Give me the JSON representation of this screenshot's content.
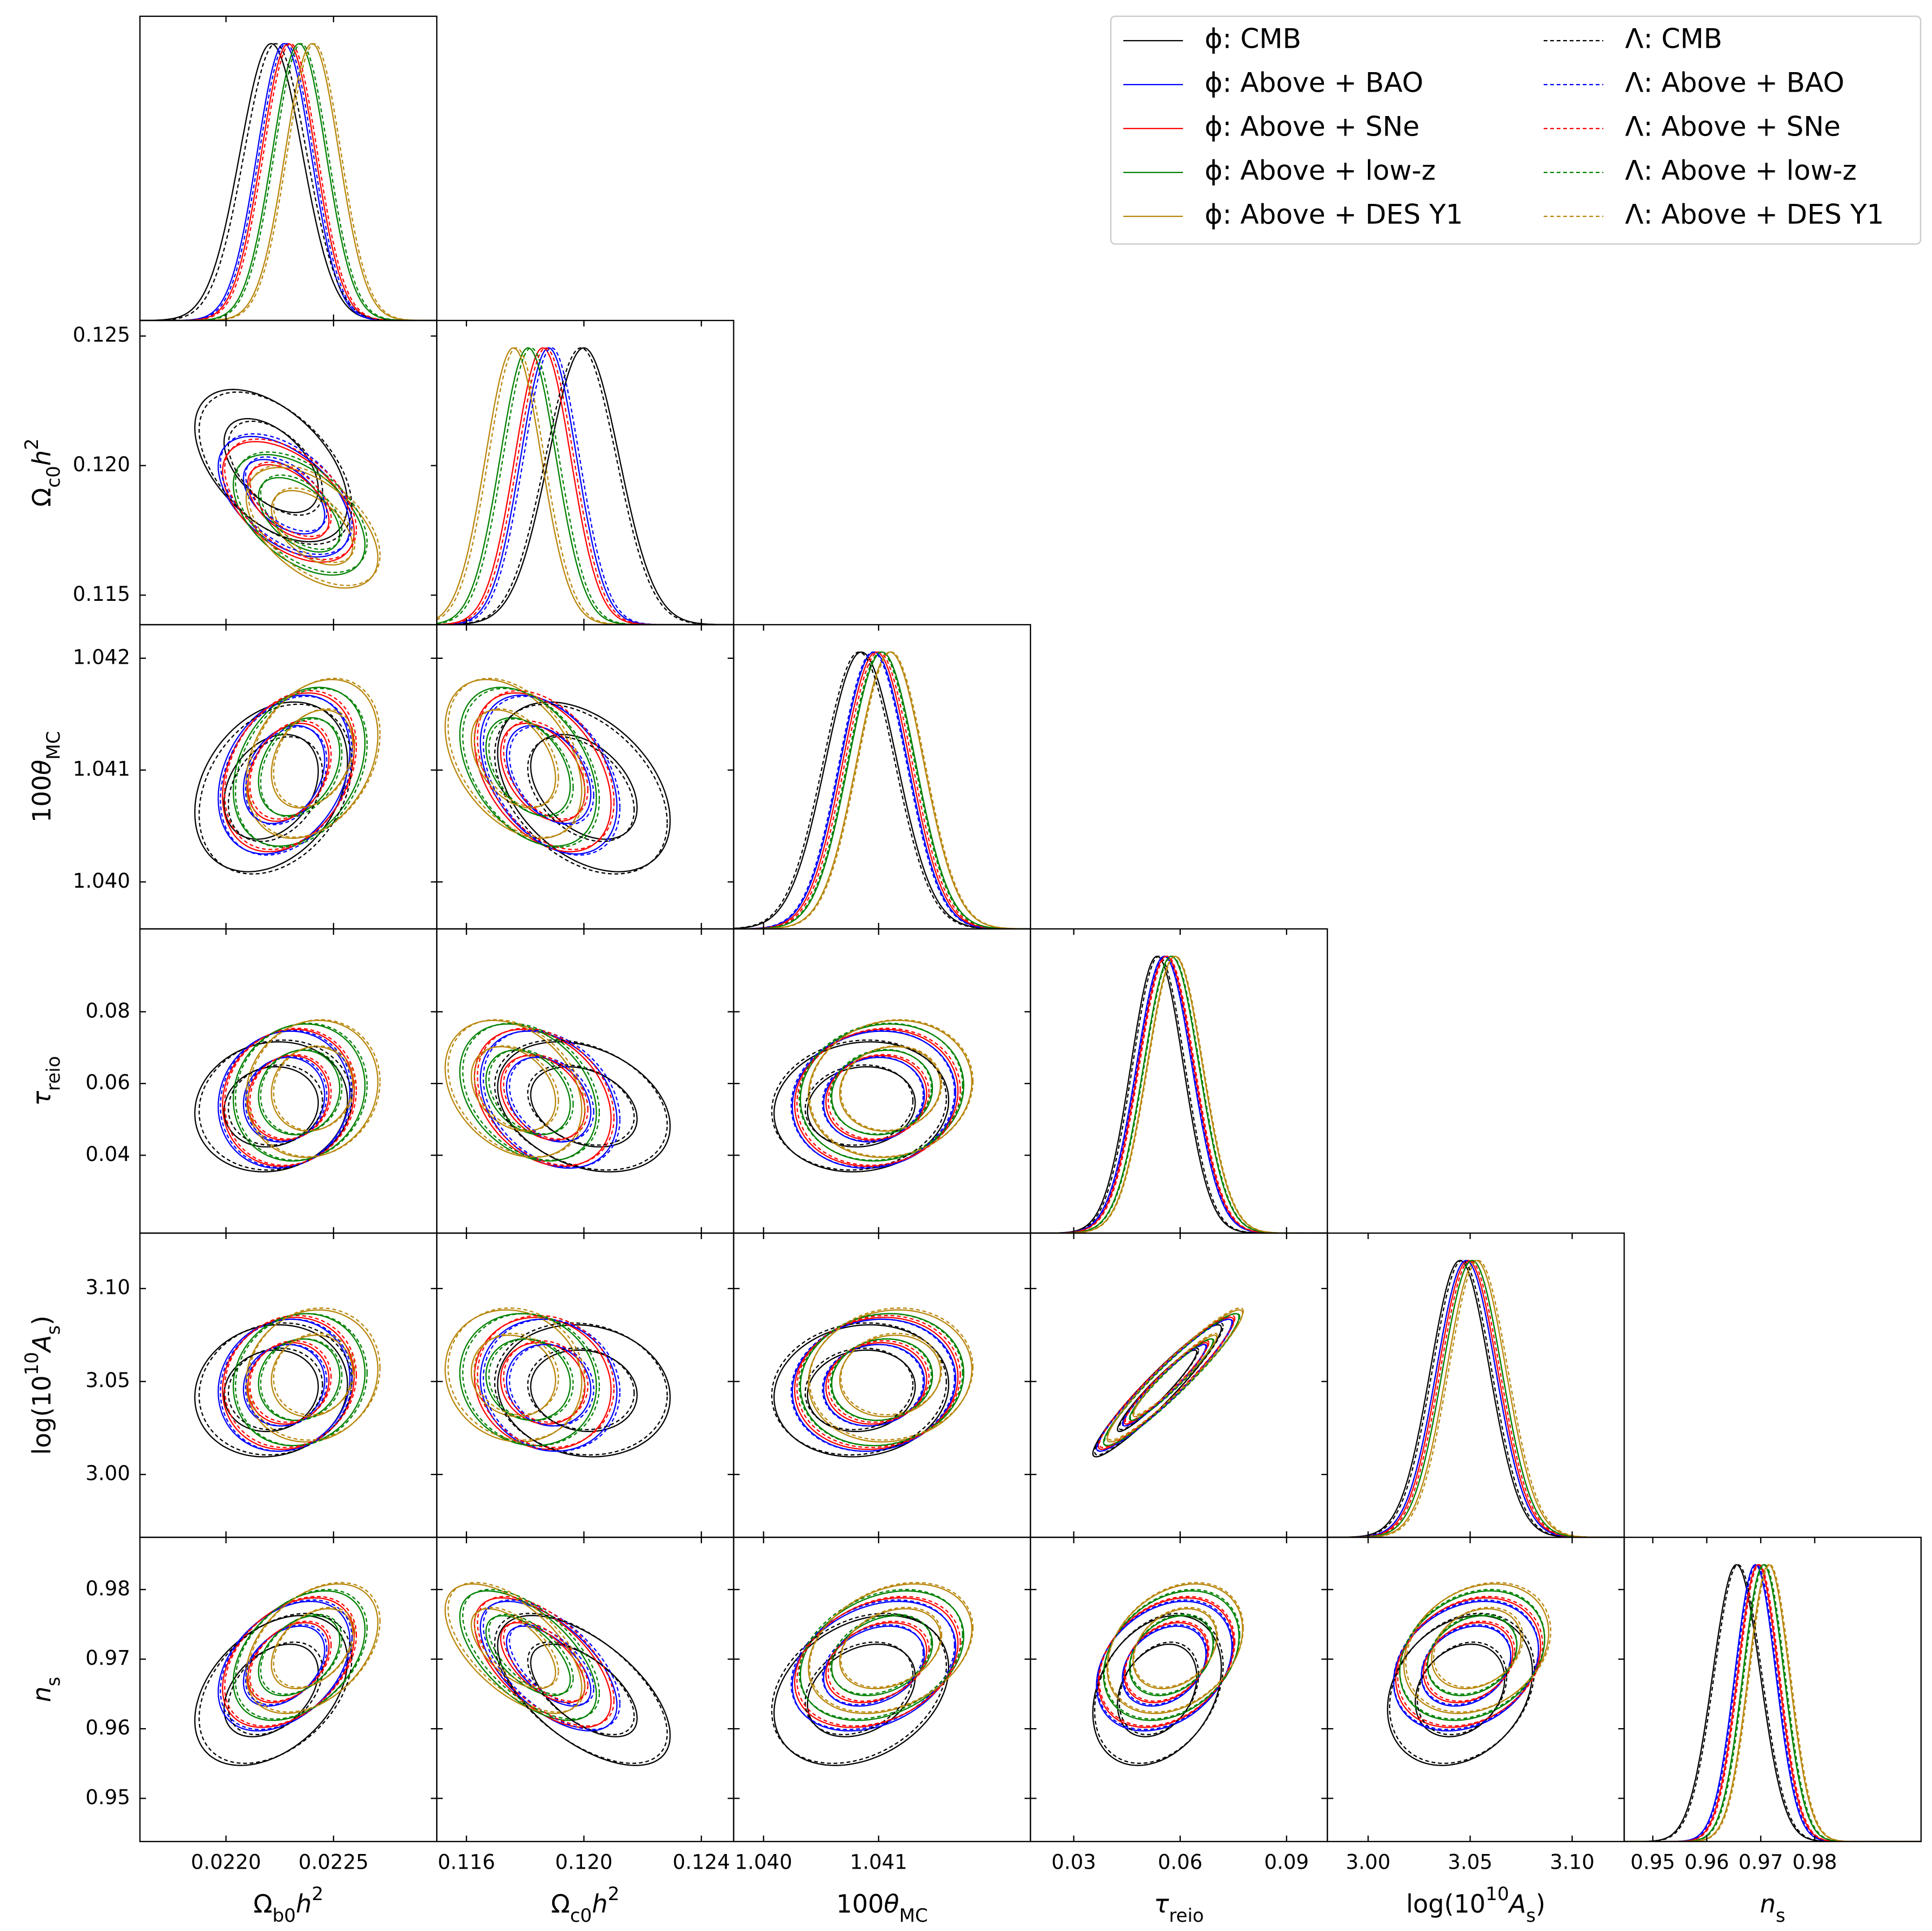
{
  "chart_data": {
    "type": "corner",
    "parameters": [
      {
        "label": [
          {
            "t": "Ω",
            "s": "n"
          },
          {
            "t": "b0",
            "s": "sub"
          },
          {
            "t": "h",
            "s": "i"
          },
          {
            "t": "2",
            "s": "sup"
          }
        ],
        "xlim": [
          0.0216,
          0.02298
        ],
        "xticks": [
          {
            "value": 0.022,
            "label": "0.0220"
          },
          {
            "value": 0.0225,
            "label": "0.0225"
          }
        ]
      },
      {
        "label": [
          {
            "t": "Ω",
            "s": "n"
          },
          {
            "t": "c0",
            "s": "sub"
          },
          {
            "t": "h",
            "s": "i"
          },
          {
            "t": "2",
            "s": "sup"
          }
        ],
        "xlim": [
          0.11499,
          0.1251
        ],
        "xticks": [
          0.116,
          {
            "value": 0.12,
            "label": "0.120"
          },
          0.124
        ],
        "ylim": [
          0.11386,
          0.1256
        ],
        "yticks": [
          0.115,
          {
            "value": 0.12,
            "label": "0.120"
          },
          0.125
        ]
      },
      {
        "label": [
          {
            "t": "100",
            "s": "n"
          },
          {
            "t": "θ",
            "s": "i"
          },
          {
            "t": "MC",
            "s": "sub"
          }
        ],
        "xlim": [
          1.03974,
          1.04232
        ],
        "xticks": [
          {
            "value": 1.04,
            "label": "1.040"
          },
          1.041
        ],
        "ylim": [
          1.03958,
          1.0423
        ],
        "yticks": [
          {
            "value": 1.04,
            "label": "1.040"
          },
          1.041,
          1.042
        ]
      },
      {
        "label": [
          {
            "t": "τ",
            "s": "i"
          },
          {
            "t": "reio",
            "s": "sub"
          }
        ],
        "xlim": [
          0.0178,
          0.1015
        ],
        "xticks": [
          0.03,
          0.06,
          0.09
        ],
        "ylim": [
          0.0183,
          0.1031
        ],
        "yticks": [
          0.04,
          0.06,
          0.08
        ]
      },
      {
        "label": [
          {
            "t": "log(10",
            "s": "n"
          },
          {
            "t": "10",
            "s": "sup"
          },
          {
            "t": "A",
            "s": "i"
          },
          {
            "t": "s",
            "s": "sub"
          },
          {
            "t": ")",
            "s": "n"
          }
        ],
        "xlim": [
          2.98,
          3.1255
        ],
        "xticks": [
          {
            "value": 3,
            "label": "3.00"
          },
          3.05,
          {
            "value": 3.1,
            "label": "3.10"
          }
        ],
        "ylim": [
          2.9662,
          3.1298
        ],
        "yticks": [
          {
            "value": 3,
            "label": "3.00"
          },
          3.05,
          {
            "value": 3.1,
            "label": "3.10"
          }
        ]
      },
      {
        "label": [
          {
            "t": "n",
            "s": "i"
          },
          {
            "t": "s",
            "s": "sub"
          }
        ],
        "xlim": [
          0.9447,
          0.9997
        ],
        "xticks": [
          0.95,
          0.96,
          0.97,
          0.98
        ],
        "ylim": [
          0.9438,
          0.9875
        ],
        "yticks": [
          0.95,
          0.96,
          0.97,
          0.98
        ]
      }
    ],
    "series": [
      {
        "name": "ϕ: CMB",
        "color": "#000000",
        "dashed": false,
        "means": [
          0.02221,
          0.12,
          1.04085,
          0.0535,
          3.045,
          0.9655
        ],
        "sigmas": [
          0.000145,
          0.0012,
          0.00031,
          0.0074,
          0.0145,
          0.0044
        ]
      },
      {
        "name": "ϕ: Above + BAO",
        "color": "#0000ff",
        "dashed": false,
        "means": [
          0.02227,
          0.1188,
          1.04096,
          0.0555,
          3.048,
          0.969
        ],
        "sigmas": [
          0.000125,
          0.00095,
          0.00029,
          0.0078,
          0.0145,
          0.0038
        ]
      },
      {
        "name": "ϕ: Above + SNe",
        "color": "#ff0000",
        "dashed": false,
        "means": [
          0.02229,
          0.1186,
          1.04098,
          0.056,
          3.049,
          0.9695
        ],
        "sigmas": [
          0.000125,
          0.00095,
          0.00029,
          0.0078,
          0.0145,
          0.0038
        ]
      },
      {
        "name": "ϕ: Above + low-z",
        "color": "#008000",
        "dashed": false,
        "means": [
          0.02234,
          0.1181,
          1.04103,
          0.0575,
          3.051,
          0.9705
        ],
        "sigmas": [
          0.000125,
          0.00095,
          0.00029,
          0.0078,
          0.0145,
          0.0038
        ]
      },
      {
        "name": "ϕ: Above + DES Y1",
        "color": "#b8860b",
        "dashed": false,
        "means": [
          0.0224,
          0.1176,
          1.0411,
          0.0585,
          3.053,
          0.9715
        ],
        "sigmas": [
          0.000125,
          0.00095,
          0.00029,
          0.0078,
          0.0145,
          0.0038
        ]
      },
      {
        "name": "Λ: CMB",
        "color": "#000000",
        "dashed": true,
        "means": [
          0.02223,
          0.1199,
          1.04083,
          0.054,
          3.046,
          0.9658
        ],
        "sigmas": [
          0.000145,
          0.0012,
          0.00031,
          0.0074,
          0.0145,
          0.0044
        ]
      },
      {
        "name": "Λ: Above + BAO",
        "color": "#0000ff",
        "dashed": true,
        "means": [
          0.02228,
          0.1189,
          1.04095,
          0.0557,
          3.048,
          0.9692
        ],
        "sigmas": [
          0.000125,
          0.00095,
          0.00029,
          0.0078,
          0.0145,
          0.0038
        ]
      },
      {
        "name": "Λ: Above + SNe",
        "color": "#ff0000",
        "dashed": true,
        "means": [
          0.0223,
          0.1187,
          1.041,
          0.0563,
          3.05,
          0.9697
        ],
        "sigmas": [
          0.000125,
          0.00095,
          0.00029,
          0.0078,
          0.0145,
          0.0038
        ]
      },
      {
        "name": "Λ: Above + low-z",
        "color": "#008000",
        "dashed": true,
        "means": [
          0.02235,
          0.1182,
          1.04102,
          0.0577,
          3.051,
          0.9707
        ],
        "sigmas": [
          0.000125,
          0.00095,
          0.00029,
          0.0078,
          0.0145,
          0.0038
        ]
      },
      {
        "name": "Λ: Above + DES Y1",
        "color": "#b8860b",
        "dashed": true,
        "means": [
          0.02241,
          0.1177,
          1.04111,
          0.0587,
          3.054,
          0.9717
        ],
        "sigmas": [
          0.000125,
          0.00095,
          0.00029,
          0.0078,
          0.0145,
          0.0038
        ]
      }
    ],
    "correlations": [
      [],
      [
        -0.5
      ],
      [
        0.3,
        -0.4
      ],
      [
        0.1,
        -0.3,
        0.1
      ],
      [
        0.1,
        -0.1,
        0.1,
        0.95
      ],
      [
        0.4,
        -0.6,
        0.3,
        0.3,
        0.25
      ]
    ],
    "contour_levels": [
      0.68,
      0.95
    ],
    "legend": "upper right"
  }
}
